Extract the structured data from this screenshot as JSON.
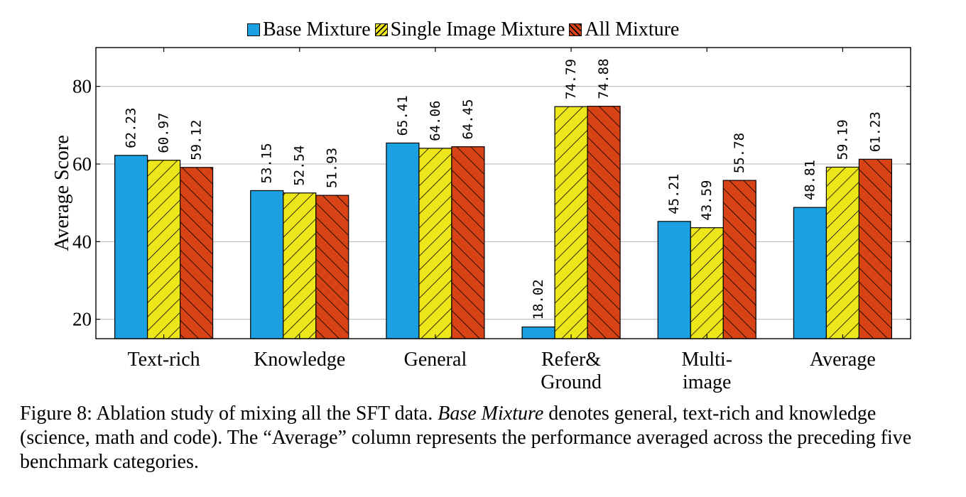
{
  "chart_data": {
    "type": "bar",
    "categories": [
      [
        "Text-rich"
      ],
      [
        "Knowledge"
      ],
      [
        "General"
      ],
      [
        "Refer&",
        "Ground"
      ],
      [
        "Multi-",
        "image"
      ],
      [
        "Average"
      ]
    ],
    "series": [
      {
        "name": "Base Mixture",
        "values": [
          62.23,
          53.15,
          65.41,
          18.02,
          45.21,
          48.81
        ],
        "color": "#1ba1e2",
        "hatch": "none"
      },
      {
        "name": "Single Image Mixture",
        "values": [
          60.97,
          52.54,
          64.06,
          74.79,
          43.59,
          59.19
        ],
        "color": "#ede61a",
        "hatch": "north-east"
      },
      {
        "name": "All Mixture",
        "values": [
          59.12,
          51.93,
          64.45,
          74.88,
          55.78,
          61.23
        ],
        "color": "#d84315",
        "hatch": "north-west"
      }
    ],
    "data_labels": [
      [
        "62.23",
        "60.97",
        "59.12"
      ],
      [
        "53.15",
        "52.54",
        "51.93"
      ],
      [
        "65.41",
        "64.06",
        "64.45"
      ],
      [
        "18.02",
        "74.79",
        "74.88"
      ],
      [
        "45.21",
        "43.59",
        "55.78"
      ],
      [
        "48.81",
        "59.19",
        "61.23"
      ]
    ],
    "ylabel": "Average Score",
    "xlabel": "",
    "yticks": [
      20,
      40,
      60,
      80
    ],
    "ylim": [
      15,
      90
    ],
    "grid": true,
    "legend": "top-center"
  },
  "caption": {
    "prefix": "Figure 8: Ablation study of mixing all the SFT data. ",
    "emph": "Base Mixture",
    "suffix": " denotes general, text-rich and knowledge (science, math and code). The “Average” column represents the performance averaged across the preceding five benchmark categories."
  }
}
